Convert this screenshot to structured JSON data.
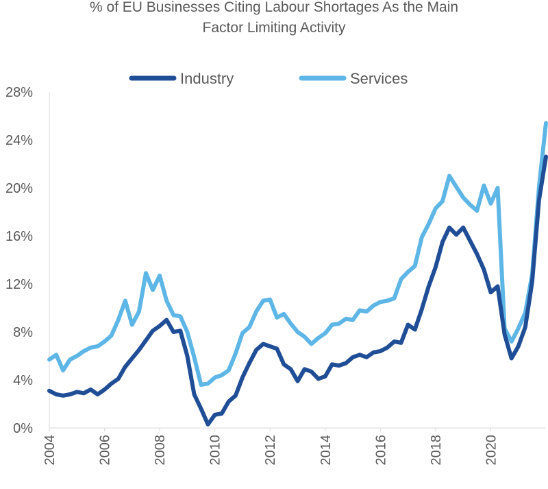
{
  "chart_data": {
    "type": "line",
    "title_line1": "% of EU Businesses Citing Labour Shortages As the Main",
    "title_line2": "Factor Limiting Activity",
    "xlabel": "",
    "ylabel": "",
    "ylim": [
      0,
      28
    ],
    "yticks": [
      "0%",
      "4%",
      "8%",
      "12%",
      "16%",
      "20%",
      "24%",
      "28%"
    ],
    "xlim": [
      2004,
      2022
    ],
    "xticks": [
      "2004",
      "2006",
      "2008",
      "2010",
      "2012",
      "2014",
      "2016",
      "2018",
      "2020"
    ],
    "grid": false,
    "legend_position": "top",
    "series": [
      {
        "name": "Industry",
        "color": "#1f4e97",
        "x": [
          2004.0,
          2004.25,
          2004.5,
          2004.75,
          2005.0,
          2005.25,
          2005.5,
          2005.75,
          2006.0,
          2006.25,
          2006.5,
          2006.75,
          2007.0,
          2007.25,
          2007.5,
          2007.75,
          2008.0,
          2008.25,
          2008.5,
          2008.75,
          2009.0,
          2009.25,
          2009.5,
          2009.75,
          2010.0,
          2010.25,
          2010.5,
          2010.75,
          2011.0,
          2011.25,
          2011.5,
          2011.75,
          2012.0,
          2012.25,
          2012.5,
          2012.75,
          2013.0,
          2013.25,
          2013.5,
          2013.75,
          2014.0,
          2014.25,
          2014.5,
          2014.75,
          2015.0,
          2015.25,
          2015.5,
          2015.75,
          2016.0,
          2016.25,
          2016.5,
          2016.75,
          2017.0,
          2017.25,
          2017.5,
          2017.75,
          2018.0,
          2018.25,
          2018.5,
          2018.75,
          2019.0,
          2019.25,
          2019.5,
          2019.75,
          2020.0,
          2020.25,
          2020.5,
          2020.75,
          2021.0,
          2021.25,
          2021.5,
          2021.75,
          2022.0
        ],
        "values": [
          3.1,
          2.8,
          2.7,
          2.8,
          3.0,
          2.9,
          3.2,
          2.8,
          3.2,
          3.7,
          4.1,
          5.1,
          5.8,
          6.5,
          7.3,
          8.1,
          8.5,
          9.0,
          8.0,
          8.1,
          6.0,
          2.8,
          1.6,
          0.3,
          1.1,
          1.2,
          2.2,
          2.7,
          4.2,
          5.4,
          6.5,
          7.0,
          6.8,
          6.6,
          5.3,
          4.9,
          3.9,
          4.9,
          4.7,
          4.1,
          4.3,
          5.3,
          5.2,
          5.4,
          5.9,
          6.1,
          5.9,
          6.3,
          6.4,
          6.7,
          7.2,
          7.1,
          8.6,
          8.2,
          9.9,
          11.8,
          13.4,
          15.5,
          16.7,
          16.1,
          16.7,
          15.6,
          14.5,
          13.2,
          11.3,
          11.8,
          7.8,
          5.8,
          6.8,
          8.4,
          12.2,
          19.0,
          22.6
        ]
      },
      {
        "name": "Services",
        "color": "#5db6e6",
        "x": [
          2004.0,
          2004.25,
          2004.5,
          2004.75,
          2005.0,
          2005.25,
          2005.5,
          2005.75,
          2006.0,
          2006.25,
          2006.5,
          2006.75,
          2007.0,
          2007.25,
          2007.5,
          2007.75,
          2008.0,
          2008.25,
          2008.5,
          2008.75,
          2009.0,
          2009.25,
          2009.5,
          2009.75,
          2010.0,
          2010.25,
          2010.5,
          2010.75,
          2011.0,
          2011.25,
          2011.5,
          2011.75,
          2012.0,
          2012.25,
          2012.5,
          2012.75,
          2013.0,
          2013.25,
          2013.5,
          2013.75,
          2014.0,
          2014.25,
          2014.5,
          2014.75,
          2015.0,
          2015.25,
          2015.5,
          2015.75,
          2016.0,
          2016.25,
          2016.5,
          2016.75,
          2017.0,
          2017.25,
          2017.5,
          2017.75,
          2018.0,
          2018.25,
          2018.5,
          2018.75,
          2019.0,
          2019.25,
          2019.5,
          2019.75,
          2020.0,
          2020.25,
          2020.5,
          2020.75,
          2021.0,
          2021.25,
          2021.5,
          2021.75,
          2022.0
        ],
        "values": [
          5.7,
          6.1,
          4.8,
          5.7,
          6.0,
          6.4,
          6.7,
          6.8,
          7.2,
          7.7,
          9.0,
          10.6,
          8.6,
          9.7,
          12.9,
          11.5,
          12.7,
          10.6,
          9.4,
          9.3,
          8.0,
          5.9,
          3.6,
          3.7,
          4.2,
          4.4,
          4.8,
          6.2,
          7.9,
          8.4,
          9.7,
          10.6,
          10.7,
          9.2,
          9.5,
          8.7,
          8.0,
          7.6,
          7.0,
          7.5,
          7.9,
          8.6,
          8.7,
          9.1,
          9.0,
          9.8,
          9.7,
          10.2,
          10.5,
          10.6,
          10.8,
          12.4,
          13.0,
          13.5,
          15.9,
          17.0,
          18.3,
          18.9,
          21.0,
          20.1,
          19.2,
          18.6,
          18.1,
          20.2,
          18.7,
          20.0,
          8.3,
          7.2,
          8.3,
          9.6,
          12.8,
          20.1,
          25.4
        ]
      }
    ]
  }
}
